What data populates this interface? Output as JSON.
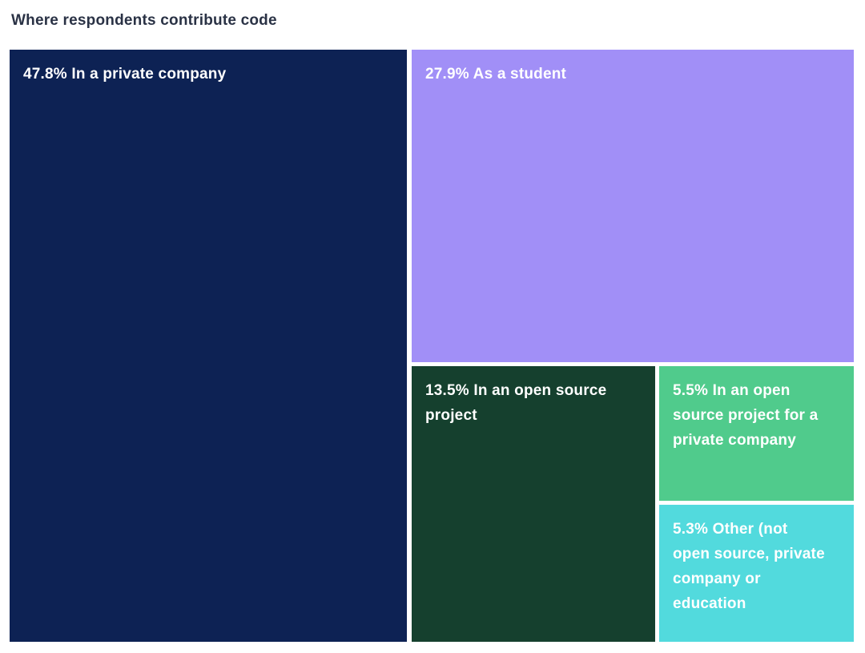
{
  "title": "Where respondents contribute code",
  "colors": {
    "title_text": "#2A3245",
    "tile_text": "#FFFFFF",
    "background": "#FFFFFF"
  },
  "chart_data": {
    "type": "treemap",
    "title": "Where respondents contribute code",
    "unit": "%",
    "legend_position": "none",
    "items": [
      {
        "name": "In a private company",
        "value": 47.8,
        "label": "47.8% In a private company",
        "color": "#0D2254"
      },
      {
        "name": "As a student",
        "value": 27.9,
        "label": "27.9% As a student",
        "color": "#A18FF7"
      },
      {
        "name": "In an open source project",
        "value": 13.5,
        "label": "13.5% In an open source project",
        "color": "#15402E"
      },
      {
        "name": "In an open source project for a private company",
        "value": 5.5,
        "label": "5.5% In an open source project for a private company",
        "color": "#50CB8C"
      },
      {
        "name": "Other (not open source, private company or education",
        "value": 5.3,
        "label": "5.3% Other (not open source, private company or education",
        "color": "#52DADD"
      }
    ]
  }
}
